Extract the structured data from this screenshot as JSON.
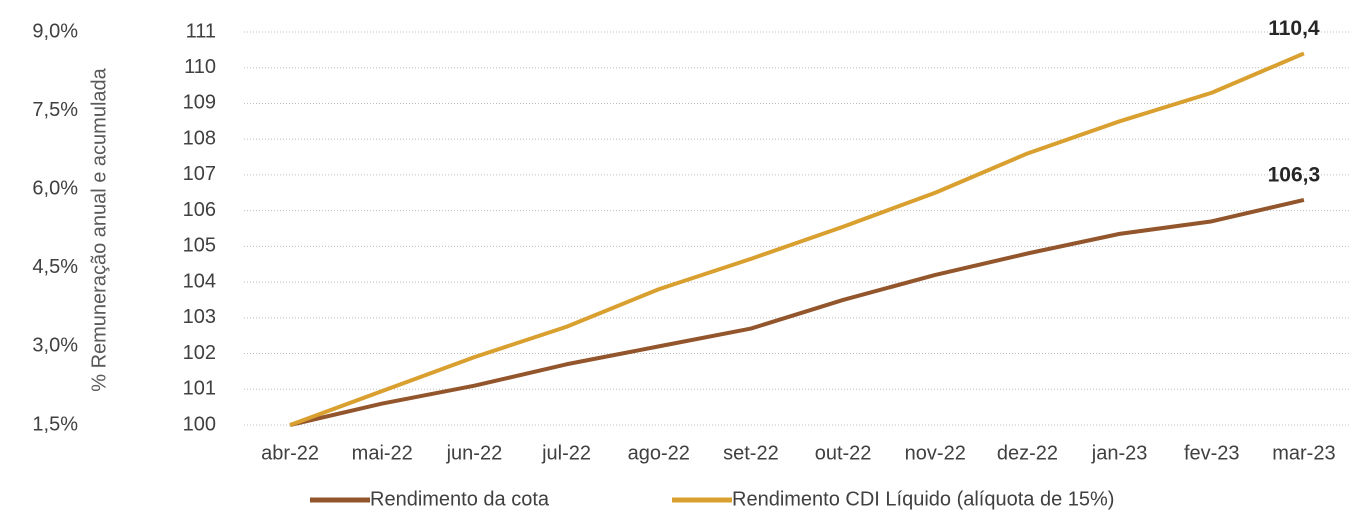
{
  "chart_data": {
    "type": "line",
    "y2_label": "% Remuneração anual e acumulada",
    "categories": [
      "abr-22",
      "mai-22",
      "jun-22",
      "jul-22",
      "ago-22",
      "set-22",
      "out-22",
      "nov-22",
      "dez-22",
      "jan-23",
      "fev-23",
      "mar-23"
    ],
    "series": [
      {
        "name": "Rendimento da cota",
        "color": "#93562c",
        "values": [
          100,
          100.6,
          101.1,
          101.7,
          102.2,
          102.7,
          103.5,
          104.2,
          104.8,
          105.35,
          105.7,
          106.3
        ],
        "value_labels": [
          null,
          null,
          null,
          null,
          null,
          null,
          null,
          null,
          null,
          null,
          null,
          "106,3"
        ]
      },
      {
        "name": "Rendimento CDI Líquido (alíquota de 15%)",
        "color": "#d9a030",
        "values": [
          100,
          100.95,
          101.9,
          102.75,
          103.8,
          104.65,
          105.55,
          106.5,
          107.6,
          108.5,
          109.3,
          110.4
        ],
        "value_labels": [
          null,
          null,
          null,
          null,
          null,
          null,
          null,
          null,
          null,
          null,
          null,
          "110,4"
        ]
      }
    ],
    "ylim": [
      100,
      111
    ],
    "yticks": [
      100,
      101,
      102,
      103,
      104,
      105,
      106,
      107,
      108,
      109,
      110,
      111
    ],
    "y2lim": [
      1.5,
      9.0
    ],
    "y2ticks": [
      {
        "value": 1.5,
        "label": "1,5%"
      },
      {
        "value": 3.0,
        "label": "3,0%"
      },
      {
        "value": 4.5,
        "label": "4,5%"
      },
      {
        "value": 6.0,
        "label": "6,0%"
      },
      {
        "value": 7.5,
        "label": "7,5%"
      },
      {
        "value": 9.0,
        "label": "9,0%"
      }
    ],
    "grid": true,
    "legend": "bottom"
  }
}
